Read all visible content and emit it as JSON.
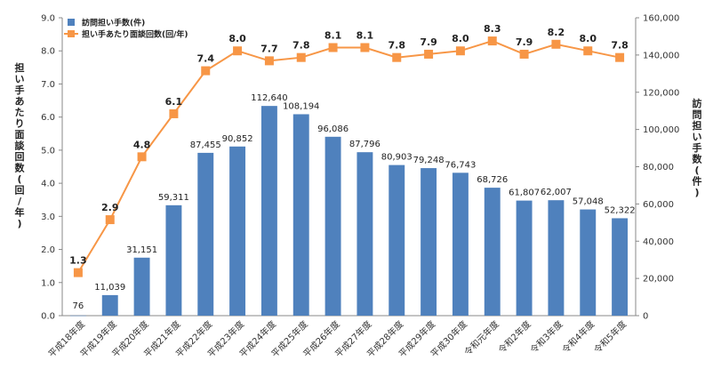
{
  "chart_data": {
    "type": "bar",
    "categories": [
      "平成18年度",
      "平成19年度",
      "平成20年度",
      "平成21年度",
      "平成22年度",
      "平成23年度",
      "平成24年度",
      "平成25年度",
      "平成26年度",
      "平成27年度",
      "平成28年度",
      "平成29年度",
      "平成30年度",
      "令和元年度",
      "令和2年度",
      "令和3年度",
      "令和4年度",
      "令和5年度"
    ],
    "series": [
      {
        "name": "訪問担い手数(件)",
        "type": "bar",
        "axis": "right",
        "color": "#4f81bd",
        "values": [
          76,
          11039,
          31151,
          59311,
          87455,
          90852,
          112640,
          108194,
          96086,
          87796,
          80903,
          79248,
          76743,
          68726,
          61807,
          62007,
          57048,
          52322
        ],
        "labels": [
          "76",
          "11,039",
          "31,151",
          "59,311",
          "87,455",
          "90,852",
          "112,640",
          "108,194",
          "96,086",
          "87,796",
          "80,903",
          "79,248",
          "76,743",
          "68,726",
          "61,807",
          "62,007",
          "57,048",
          "52,322"
        ]
      },
      {
        "name": "担い手あたり面談回数(回/年)",
        "type": "line",
        "axis": "left",
        "color": "#f79646",
        "values": [
          1.3,
          2.9,
          4.8,
          6.1,
          7.4,
          8.0,
          7.7,
          7.8,
          8.1,
          8.1,
          7.8,
          7.9,
          8.0,
          8.3,
          7.9,
          8.2,
          8.0,
          7.8
        ],
        "labels": [
          "1.3",
          "2.9",
          "4.8",
          "6.1",
          "7.4",
          "8.0",
          "7.7",
          "7.8",
          "8.1",
          "8.1",
          "7.8",
          "7.9",
          "8.0",
          "8.3",
          "7.9",
          "8.2",
          "8.0",
          "7.8"
        ]
      }
    ],
    "y_left": {
      "title": "担い手あたり面談回数(回/年)",
      "range": [
        0,
        9
      ],
      "ticks": [
        "0.0",
        "1.0",
        "2.0",
        "3.0",
        "4.0",
        "5.0",
        "6.0",
        "7.0",
        "8.0",
        "9.0"
      ]
    },
    "y_right": {
      "title": "訪問担い手数(件)",
      "range": [
        0,
        160000
      ],
      "ticks": [
        "0",
        "20,000",
        "40,000",
        "60,000",
        "80,000",
        "100,000",
        "120,000",
        "140,000",
        "160,000"
      ]
    },
    "grid": false,
    "legend": "top-left"
  }
}
